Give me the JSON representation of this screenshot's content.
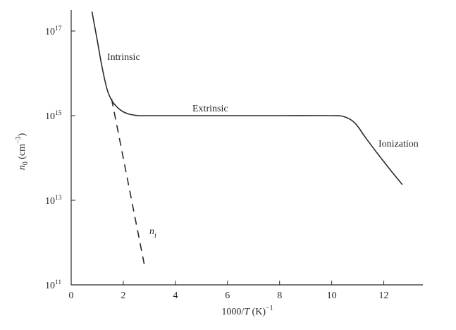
{
  "chart_data": {
    "type": "line",
    "title": "",
    "xlabel": "1000/T (K)^-1",
    "ylabel": "n0 (cm^-3)",
    "xlim": [
      0,
      13.5
    ],
    "ylim": [
      11,
      17.5
    ],
    "y_scale": "log",
    "x_ticks": [
      0,
      2,
      4,
      6,
      8,
      10,
      12
    ],
    "y_ticks": [
      {
        "base": "10",
        "exp": "11",
        "value": 11
      },
      {
        "base": "10",
        "exp": "13",
        "value": 13
      },
      {
        "base": "10",
        "exp": "15",
        "value": 15
      },
      {
        "base": "10",
        "exp": "17",
        "value": 17
      }
    ],
    "series": [
      {
        "name": "",
        "style": "solid",
        "x": [
          0.8,
          1.0,
          1.2,
          1.4,
          1.6,
          1.9,
          2.2,
          2.6,
          3.0,
          4.0,
          6.0,
          8.0,
          10.0,
          10.5,
          10.9,
          11.3,
          11.8,
          12.3,
          12.7
        ],
        "y": [
          17.45,
          16.78,
          16.1,
          15.58,
          15.32,
          15.13,
          15.04,
          15.0,
          15.0,
          15.0,
          15.0,
          15.0,
          15.0,
          14.97,
          14.82,
          14.48,
          14.07,
          13.68,
          13.38
        ]
      },
      {
        "name": "n_i",
        "style": "dashed",
        "x": [
          1.55,
          2.8
        ],
        "y": [
          15.4,
          11.5
        ]
      }
    ],
    "annotations": [
      {
        "id": "intrinsic",
        "text": "Intrinsic"
      },
      {
        "id": "extrinsic",
        "text": "Extrinsic"
      },
      {
        "id": "ionization",
        "text": "Ionization"
      }
    ],
    "ni_label": {
      "base": "n",
      "sub": "i"
    },
    "xlabel_parts": {
      "pre": "1000/",
      "var": "T",
      "post": " (K)",
      "sup": "−1"
    },
    "ylabel_parts": {
      "var": "n",
      "sub": "0",
      "mid": " (cm",
      "sup": "−3",
      "post": ")"
    }
  }
}
